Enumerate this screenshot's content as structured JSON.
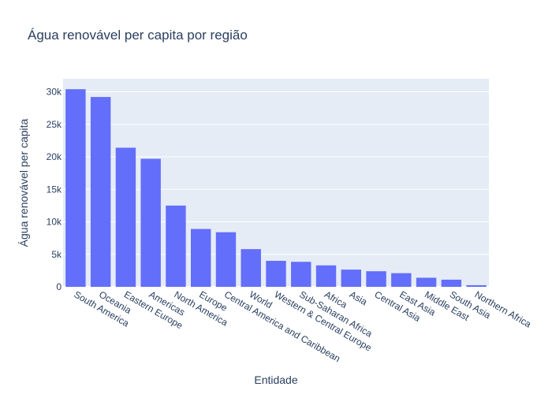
{
  "chart_data": {
    "type": "bar",
    "title": "Água renovável per capita por região",
    "xlabel": "Entidade",
    "ylabel": "Água renovável per capita",
    "categories": [
      "South America",
      "Oceania",
      "Eastern Europe",
      "Americas",
      "North America",
      "Europe",
      "Central America and Caribbean",
      "World",
      "Western & Central Europe",
      "Sub-Saharan Africa",
      "Africa",
      "Asia",
      "Central Asia",
      "East Asia",
      "Middle East",
      "South Asia",
      "Northern Africa"
    ],
    "values": [
      30400,
      29200,
      21400,
      19700,
      12500,
      8900,
      8400,
      5800,
      4000,
      3850,
      3300,
      2650,
      2400,
      2100,
      1400,
      1100,
      250
    ],
    "ylim": [
      0,
      32000
    ],
    "yticks": [
      0,
      5000,
      10000,
      15000,
      20000,
      25000,
      30000
    ],
    "ytick_labels": [
      "0",
      "5k",
      "10k",
      "15k",
      "20k",
      "25k",
      "30k"
    ],
    "grid": true,
    "legend": "none",
    "colors": {
      "bar": "#636efa",
      "plot_bg": "#e5ecf6",
      "grid": "#ffffff",
      "text": "#2a3f5f"
    }
  }
}
